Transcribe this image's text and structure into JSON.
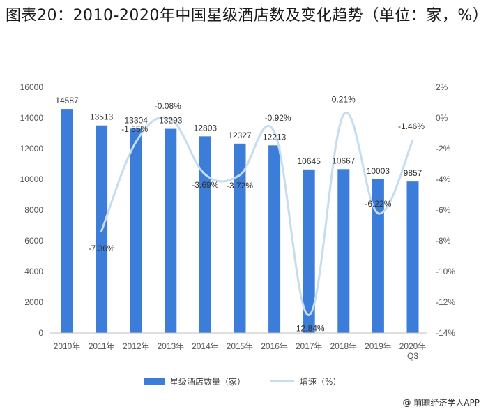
{
  "page": {
    "title": "图表20：2010-2020年中国星级酒店数及变化趋势（单位：家，%）",
    "source": "@ 前瞻经济学人APP"
  },
  "colors": {
    "bar": "#3B7DD8",
    "line": "#C6DCEF"
  },
  "chart_data": {
    "type": "bar",
    "title": "图表20：2010-2020年中国星级酒店数及变化趋势（单位：家，%）",
    "categories": [
      "2010年",
      "2011年",
      "2012年",
      "2013年",
      "2014年",
      "2015年",
      "2016年",
      "2017年",
      "2018年",
      "2019年",
      "2020年|Q3"
    ],
    "series": [
      {
        "name": "星级酒店数量（家）",
        "type": "bar",
        "axis": "left",
        "values": [
          14587,
          13513,
          13304,
          13293,
          12803,
          12327,
          12213,
          10645,
          10667,
          10003,
          9857
        ],
        "labels": [
          "14587",
          "13513",
          "13304",
          "13293",
          "12803",
          "12327",
          "12213",
          "10645",
          "10667",
          "10003",
          "9857"
        ]
      },
      {
        "name": "增速（%）",
        "type": "line",
        "axis": "right",
        "smooth": true,
        "values": [
          null,
          -7.36,
          -1.55,
          -0.08,
          -3.69,
          -3.72,
          -0.92,
          -12.84,
          0.21,
          -6.22,
          -1.46
        ],
        "labels": [
          null,
          "-7.36%",
          "-1.55%",
          "-0.08%",
          "-3.69%",
          "-3.72%",
          "-0.92%",
          "-12.84%",
          "0.21%",
          "-6.22%",
          "-1.46%"
        ]
      }
    ],
    "y_left": {
      "min": 0,
      "max": 16000,
      "step": 2000,
      "ticks": [
        "0",
        "2000",
        "4000",
        "6000",
        "8000",
        "10000",
        "12000",
        "14000",
        "16000"
      ]
    },
    "y_right": {
      "min": -14,
      "max": 2,
      "step": 2,
      "ticks": [
        "-14%",
        "-12%",
        "-10%",
        "-8%",
        "-6%",
        "-4%",
        "-2%",
        "0%",
        "2%"
      ]
    },
    "legend": {
      "position": "bottom",
      "items": [
        "星级酒店数量（家）",
        "增速（%）"
      ]
    },
    "grid": false
  }
}
